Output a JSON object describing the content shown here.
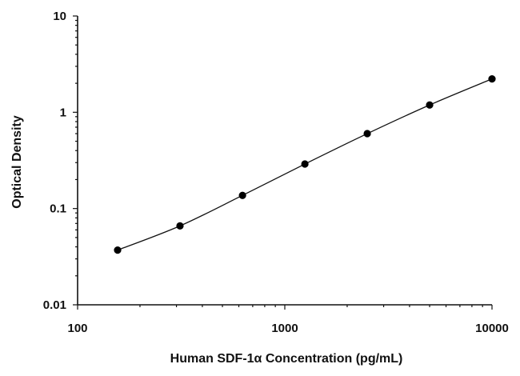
{
  "chart_data": {
    "type": "scatter",
    "title": "",
    "xlabel": "Human SDF-1α Concentration (pg/mL)",
    "ylabel": "Optical Density",
    "xscale": "log",
    "yscale": "log",
    "xlim": [
      100,
      10000
    ],
    "ylim": [
      0.01,
      10
    ],
    "x_ticks": [
      "100",
      "1000",
      "10000"
    ],
    "y_ticks": [
      "10",
      "1",
      "0.1",
      "0.01"
    ],
    "grid": false,
    "legend": "none",
    "series": [
      {
        "x": [
          156,
          312,
          625,
          1250,
          2500,
          5000,
          10000
        ],
        "y": [
          0.037,
          0.066,
          0.137,
          0.29,
          0.6,
          1.19,
          2.22
        ]
      }
    ],
    "fit_curve": true,
    "colors": {
      "points": "#000000",
      "line": "#111111",
      "axes": "#111111"
    }
  }
}
